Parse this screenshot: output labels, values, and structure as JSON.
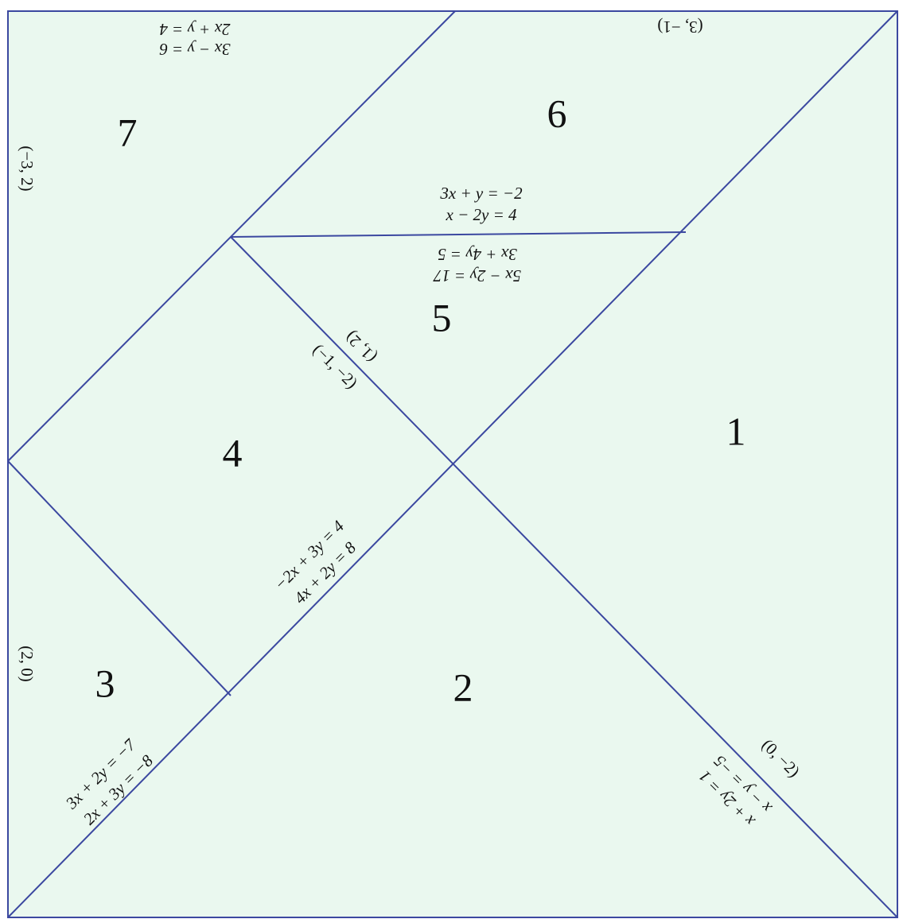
{
  "pieces": [
    {
      "label": "1"
    },
    {
      "label": "2"
    },
    {
      "label": "3"
    },
    {
      "label": "4"
    },
    {
      "label": "5"
    },
    {
      "label": "6"
    },
    {
      "label": "7"
    }
  ],
  "equations": [
    "3x − y = 6",
    "2x + y = 4",
    "3x + y = −2",
    "x − 2y = 4",
    "5x − 2y = 17",
    "3x + 4y = 5",
    "−2x + 3y = 4",
    "4x + 2y = 8",
    "3x + 2y = −7",
    "2x + 3y = −8",
    "x − y = −5",
    "x + 2y = 1"
  ],
  "points": [
    "(3, −1)",
    "(−3, 2)",
    "(1, 2)",
    "(−1, −2)",
    "(2, 0)",
    "(0, −2)"
  ]
}
